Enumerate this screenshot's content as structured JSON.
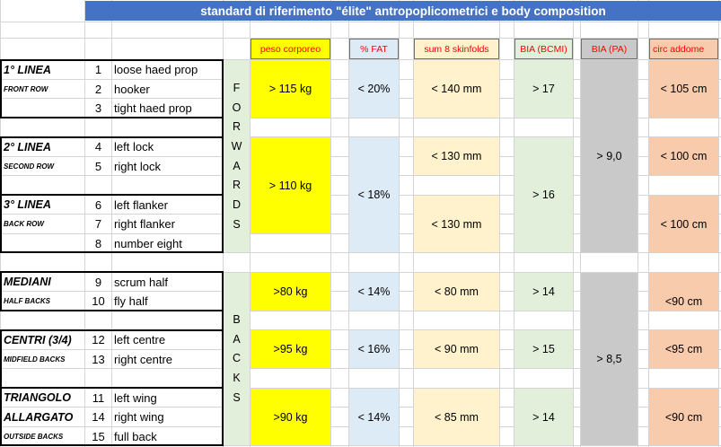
{
  "title": "standard di riferimento \"élite\" antropoplicometrici e body composition",
  "headers": {
    "peso": "peso corporeo",
    "fat": "% FAT",
    "skin": "sum 8 skinfolds",
    "bcmi": "BIA (BCMI)",
    "pa": "BIA (PA)",
    "circ": "circ addome"
  },
  "sections": {
    "forwards": [
      "F",
      "O",
      "R",
      "W",
      "A",
      "R",
      "D",
      "S"
    ],
    "backs": [
      "B",
      "A",
      "C",
      "K",
      "S"
    ]
  },
  "groups": [
    {
      "name": "1° LINEA",
      "sub": "FRONT ROW"
    },
    {
      "name": "2° LINEA",
      "sub": "SECOND ROW"
    },
    {
      "name": "3° LINEA",
      "sub": "BACK ROW"
    },
    {
      "name": "MEDIANI",
      "sub": "HALF BACKS"
    },
    {
      "name": "CENTRI (3/4)",
      "sub": "MIDFIELD BACKS"
    },
    {
      "name": "TRIANGOLO",
      "name2": "ALLARGATO",
      "sub": "OUTSIDE BACKS"
    }
  ],
  "players": [
    {
      "num": "1",
      "role": "loose haed prop"
    },
    {
      "num": "2",
      "role": "hooker"
    },
    {
      "num": "3",
      "role": "tight haed prop"
    },
    {
      "num": "4",
      "role": "left lock"
    },
    {
      "num": "5",
      "role": "right lock"
    },
    {
      "num": "6",
      "role": "left flanker"
    },
    {
      "num": "7",
      "role": "right flanker"
    },
    {
      "num": "8",
      "role": "number eight"
    },
    {
      "num": "9",
      "role": "scrum half"
    },
    {
      "num": "10",
      "role": "fly half"
    },
    {
      "num": "12",
      "role": "left centre"
    },
    {
      "num": "13",
      "role": "right centre"
    },
    {
      "num": "11",
      "role": "left wing"
    },
    {
      "num": "14",
      "role": "right wing"
    },
    {
      "num": "15",
      "role": "full back"
    }
  ],
  "values": {
    "peso": [
      "> 115 kg",
      "> 110 kg",
      ">80 kg",
      ">95 kg",
      ">90 kg"
    ],
    "fat": [
      "< 20%",
      "< 18%",
      "< 14%",
      "< 16%",
      "< 14%"
    ],
    "skin": [
      "< 140 mm",
      "< 130 mm",
      "< 130 mm",
      "< 80 mm",
      "< 90 mm",
      "< 85 mm"
    ],
    "bcmi": [
      "> 17",
      "> 16",
      "> 14",
      "> 15",
      "> 14"
    ],
    "pa": [
      "> 9,0",
      "> 8,5"
    ],
    "circ": [
      "< 105 cm",
      "< 100 cm",
      "< 100 cm",
      "<90 cm",
      "<95 cm",
      "<90 cm"
    ]
  },
  "colors": {
    "title_bg": "#4472c4",
    "yellow": "#ffff00",
    "blue": "#ddebf7",
    "cream": "#fff2cc",
    "green": "#e2efda",
    "gray": "#c9c9c9",
    "salmon": "#f8cbad",
    "header_text": "#ff0000"
  }
}
